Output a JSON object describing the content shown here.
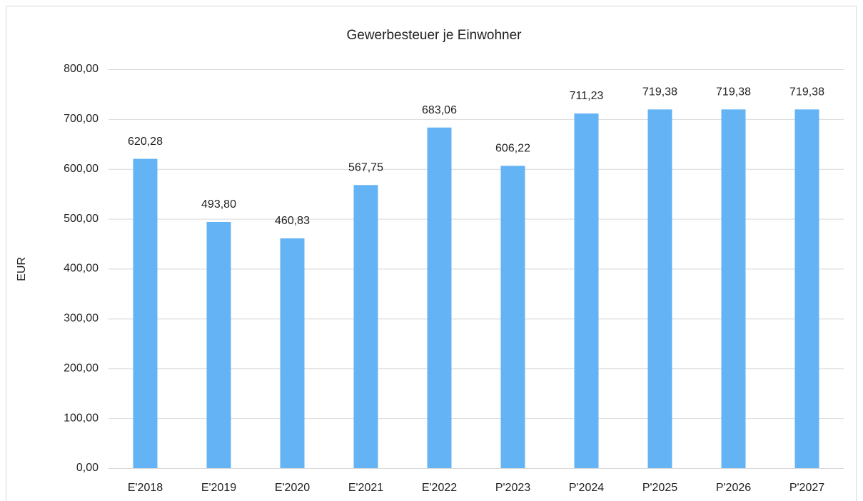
{
  "chart_data": {
    "type": "bar",
    "title": "Gewerbesteuer je Einwohner",
    "y_label": "EUR",
    "categories": [
      "E'2018",
      "E'2019",
      "E'2020",
      "E'2021",
      "E'2022",
      "P'2023",
      "P'2024",
      "P'2025",
      "P'2026",
      "P'2027"
    ],
    "values": [
      620.28,
      493.8,
      460.83,
      567.75,
      683.06,
      606.22,
      711.23,
      719.38,
      719.38,
      719.38
    ],
    "value_labels": [
      "620,28",
      "493,80",
      "460,83",
      "567,75",
      "683,06",
      "606,22",
      "711,23",
      "719,38",
      "719,38",
      "719,38"
    ],
    "color": "#63b3f5",
    "ylim": [
      0,
      800
    ],
    "yticks": [
      {
        "value": 0,
        "label": "0,00"
      },
      {
        "value": 100,
        "label": "100,00"
      },
      {
        "value": 200,
        "label": "200,00"
      },
      {
        "value": 300,
        "label": "300,00"
      },
      {
        "value": 400,
        "label": "400,00"
      },
      {
        "value": 500,
        "label": "500,00"
      },
      {
        "value": 600,
        "label": "600,00"
      },
      {
        "value": 700,
        "label": "700,00"
      },
      {
        "value": 800,
        "label": "800,00"
      }
    ],
    "grid": true
  }
}
